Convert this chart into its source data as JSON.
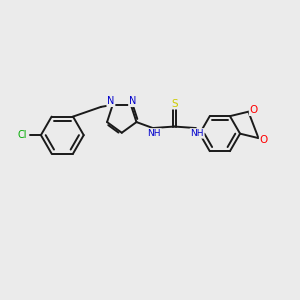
{
  "background_color": "#ebebeb",
  "atom_colors": {
    "C": "#000000",
    "N": "#0000cc",
    "S": "#cccc00",
    "O": "#ff0000",
    "Cl": "#00aa00",
    "H": "#0000cc"
  },
  "bond_color": "#1a1a1a",
  "bond_width": 1.4,
  "figsize": [
    3.0,
    3.0
  ],
  "dpi": 100
}
